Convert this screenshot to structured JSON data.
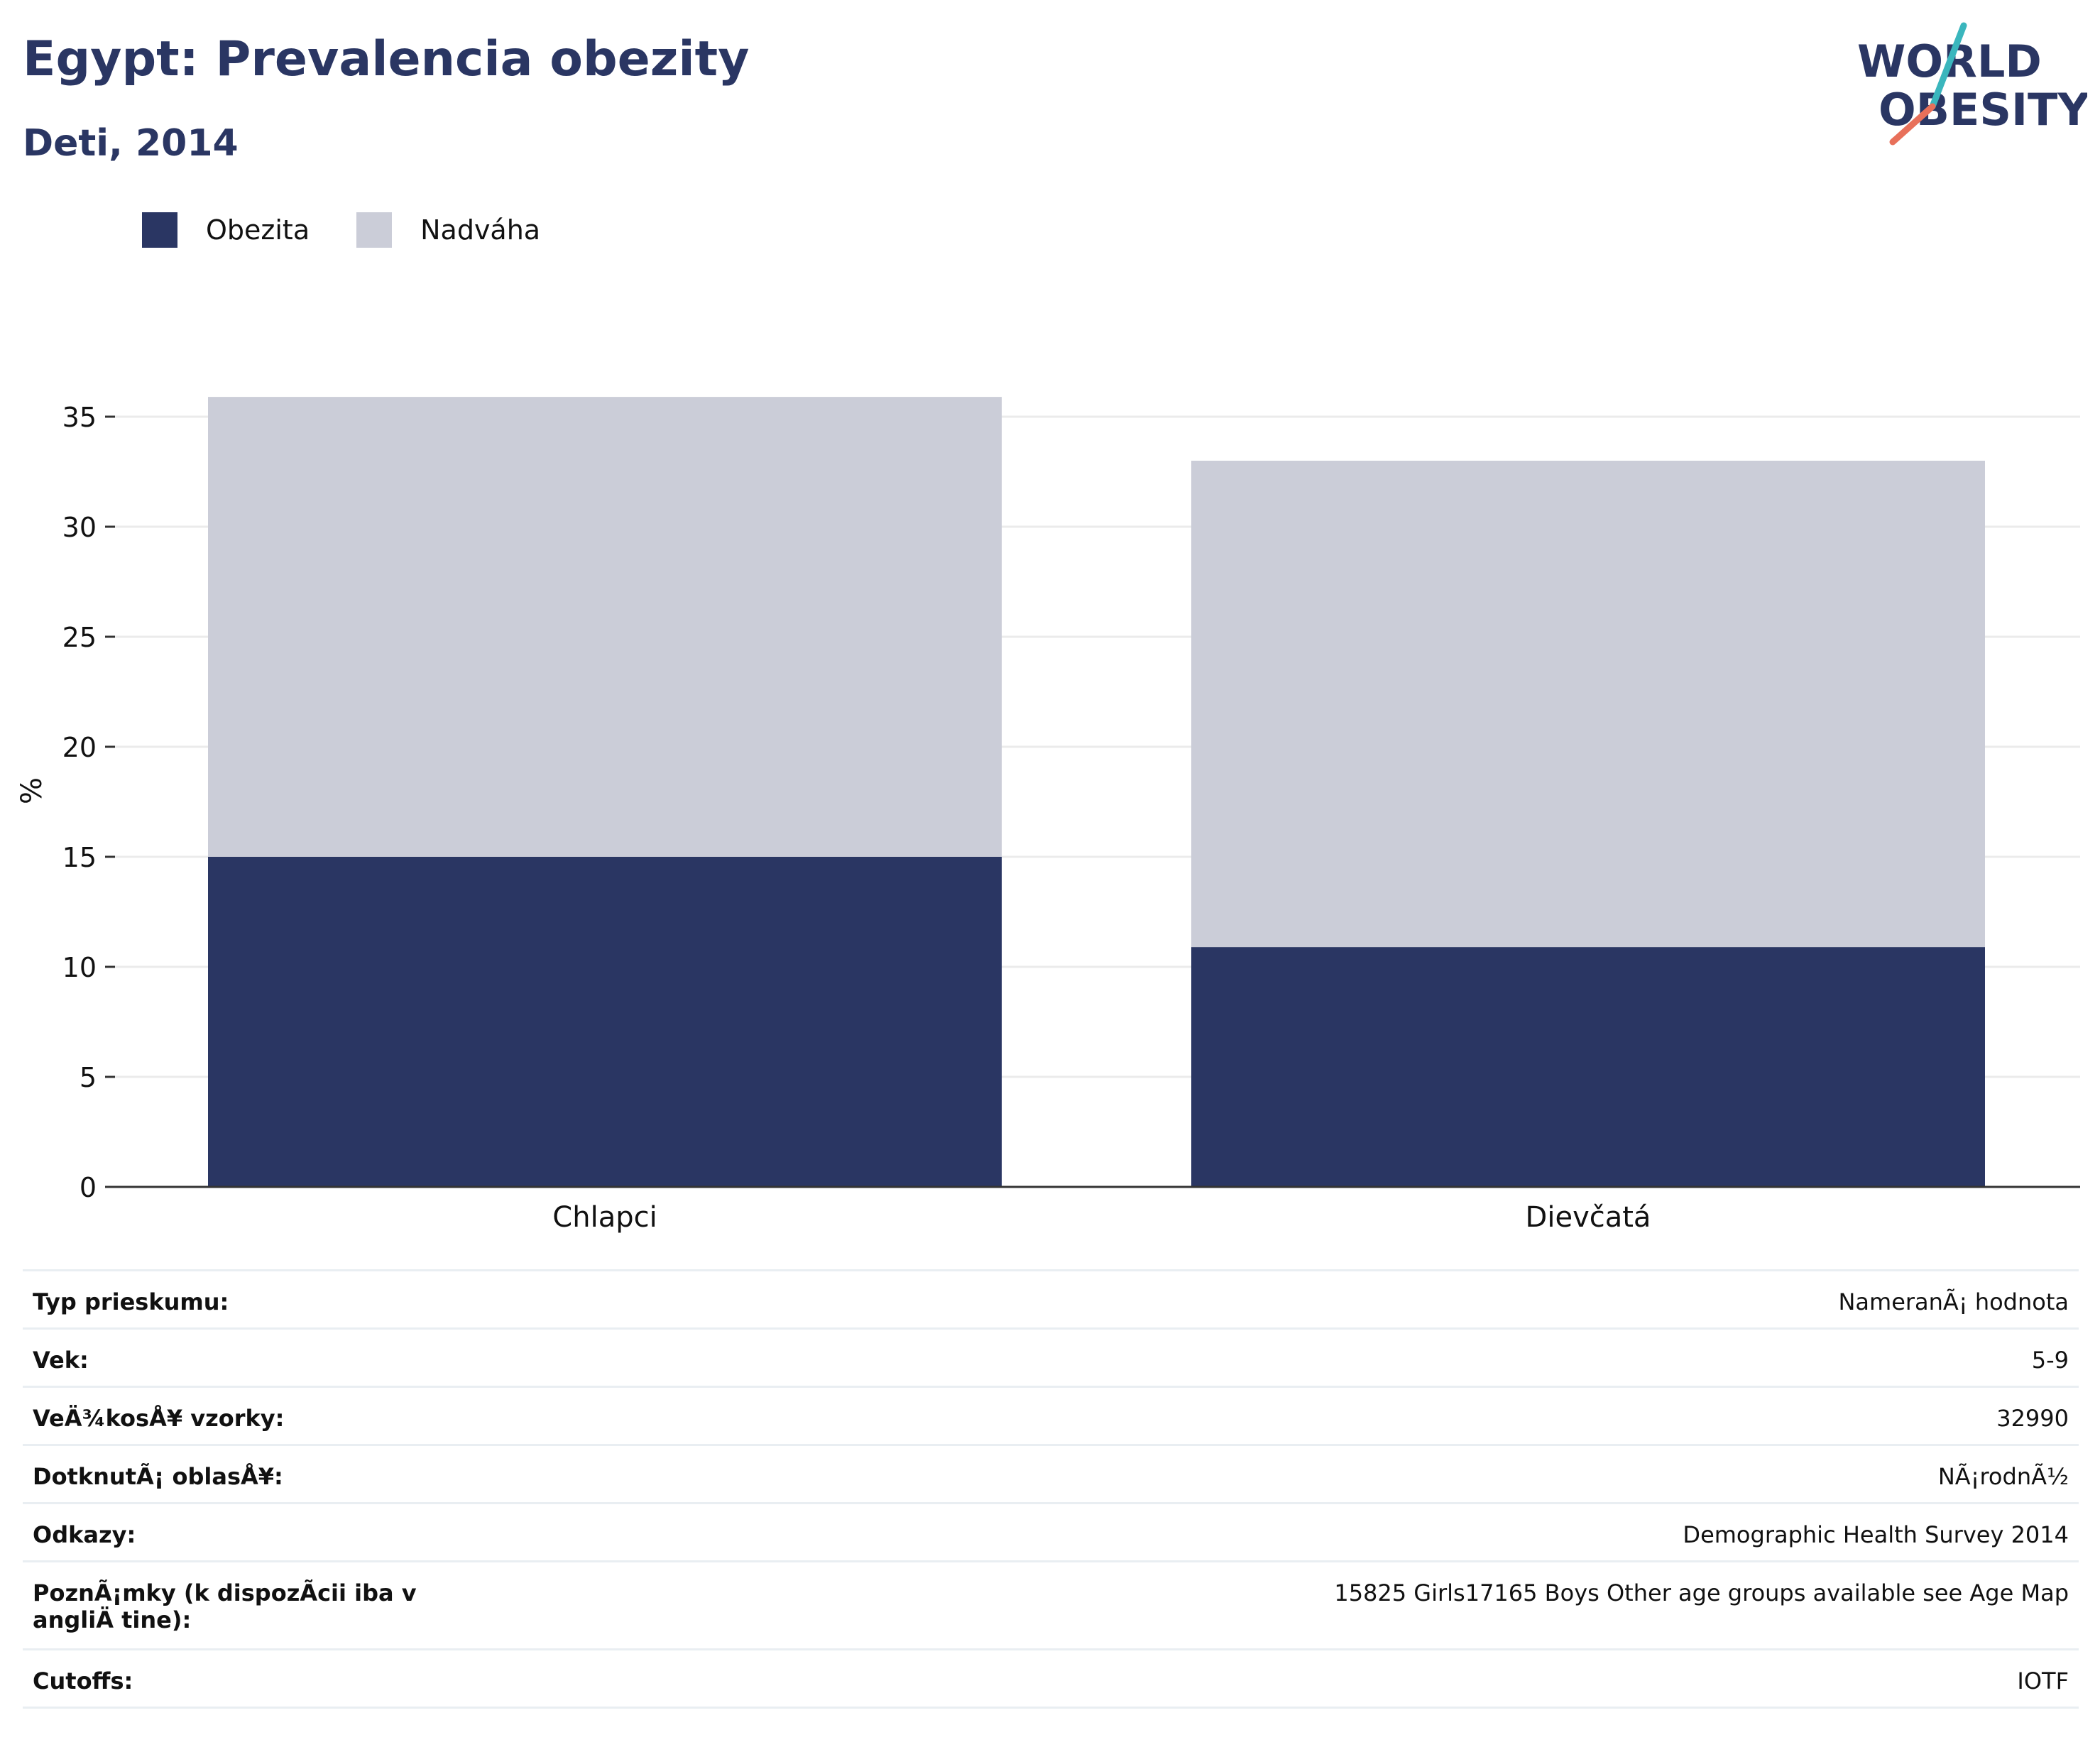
{
  "header": {
    "title": "Egypt: Prevalencia obezity",
    "subtitle": "Deti, 2014"
  },
  "logo": {
    "line1": "WORLD",
    "line2": "OBESITY"
  },
  "colors": {
    "obesity": "#2a3663",
    "overweight": "#cbcdd8",
    "title": "#2a3663",
    "logo_teal": "#3ab6bd",
    "logo_coral": "#e8705a"
  },
  "chart_data": {
    "type": "bar",
    "stacked": true,
    "categories": [
      "Chlapci",
      "Dievčatá"
    ],
    "series": [
      {
        "name": "Obezita",
        "values": [
          15.0,
          10.9
        ]
      },
      {
        "name": "Nadváha",
        "values": [
          20.9,
          22.1
        ]
      }
    ],
    "ylabel": "%",
    "ylim": [
      0,
      36
    ],
    "yticks": [
      0,
      5,
      10,
      15,
      20,
      25,
      30,
      35
    ],
    "grid": true,
    "legend_position": "top-left"
  },
  "info": {
    "rows": [
      {
        "label": "Typ prieskumu:",
        "value": "NameranÃ¡ hodnota"
      },
      {
        "label": "Vek:",
        "value": "5-9"
      },
      {
        "label": "VeÄ¾kosÅ¥ vzorky:",
        "value": "32990"
      },
      {
        "label": "DotknutÃ¡ oblasÅ¥:",
        "value": "NÃ¡rodnÃ½"
      },
      {
        "label": "Odkazy:",
        "value": "Demographic Health Survey 2014"
      },
      {
        "label": "PoznÃ¡mky (k dispozÃcii iba v angliÄ\ntine):",
        "value": "15825 Girls17165 Boys Other age groups available see Age Map"
      },
      {
        "label": "Cutoffs:",
        "value": "IOTF"
      }
    ]
  }
}
